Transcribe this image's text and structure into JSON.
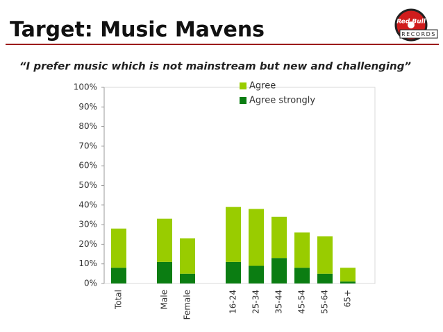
{
  "header": {
    "title": "Target:  Music Mavens",
    "logo_brand": "Red Bull",
    "logo_text": "RECORDS"
  },
  "chart_data": {
    "type": "stacked_bar",
    "title": "“I prefer music which is not mainstream but new and challenging”",
    "categories": [
      "Total",
      null,
      "Male",
      "Female",
      null,
      "16-24",
      "25-34",
      "35-44",
      "45-54",
      "55-64",
      "65+"
    ],
    "series": [
      {
        "name": "Agree strongly",
        "color": "#0b7d12",
        "values": [
          8,
          null,
          11,
          5,
          null,
          11,
          9,
          13,
          8,
          5,
          1
        ]
      },
      {
        "name": "Agree",
        "color": "#99cc00",
        "values": [
          20,
          null,
          22,
          18,
          null,
          28,
          29,
          21,
          18,
          19,
          7
        ]
      }
    ],
    "ylim": [
      0,
      100
    ],
    "yticks": [
      {
        "value": 0,
        "label": "0%"
      },
      {
        "value": 10,
        "label": "10%"
      },
      {
        "value": 20,
        "label": "20%"
      },
      {
        "value": 30,
        "label": "30%"
      },
      {
        "value": 40,
        "label": "40%"
      },
      {
        "value": 50,
        "label": "50%"
      },
      {
        "value": 60,
        "label": "60%"
      },
      {
        "value": 70,
        "label": "70%"
      },
      {
        "value": 80,
        "label": "80%"
      },
      {
        "value": 90,
        "label": "90%"
      },
      {
        "value": 100,
        "label": "100%"
      }
    ],
    "legend": "top-right"
  }
}
